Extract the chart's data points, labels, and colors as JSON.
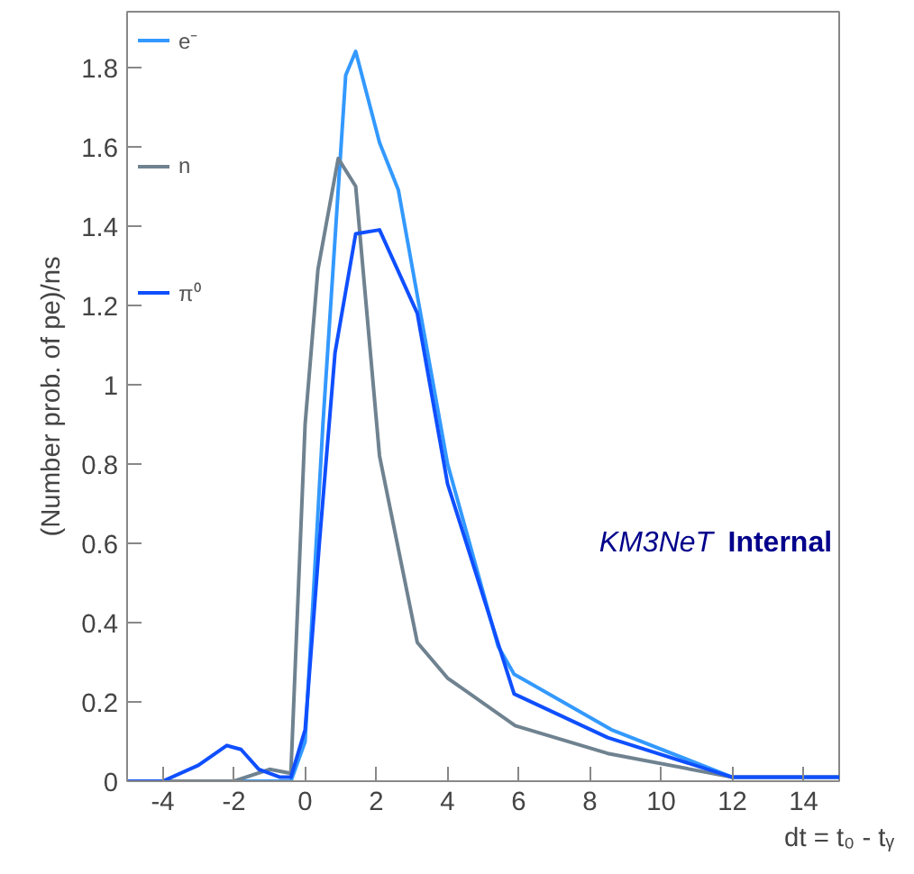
{
  "chart_data": {
    "type": "line",
    "xlabel": "dt = t₀ - tᵧ",
    "ylabel": "(Number prob. of pe)/ns",
    "xlim": [
      -5,
      15
    ],
    "ylim": [
      0,
      1.94
    ],
    "xticks": [
      -4,
      -2,
      0,
      2,
      4,
      6,
      8,
      10,
      12,
      14
    ],
    "yticks": [
      0,
      0.2,
      0.4,
      0.6,
      0.8,
      1,
      1.2,
      1.4,
      1.6,
      1.8
    ],
    "grid": false,
    "legend": "top left",
    "marker": "none",
    "line_style": "solid",
    "annotations": [
      "KM3NeT",
      "Internal"
    ],
    "series": [
      {
        "name": "e⁻",
        "color": "#3399ff",
        "x": [
          -5,
          -0.4,
          0,
          0.5,
          1.14,
          1.42,
          2.09,
          2.62,
          4,
          5.42,
          5.87,
          8.6,
          12,
          15
        ],
        "values": [
          0,
          0,
          0.1,
          0.9,
          1.78,
          1.84,
          1.61,
          1.49,
          0.8,
          0.34,
          0.27,
          0.13,
          0.01,
          0.01
        ]
      },
      {
        "name": "n",
        "color": "#6f8290",
        "x": [
          -5,
          -2,
          -1,
          -0.4,
          0,
          0.36,
          0.93,
          1.42,
          2.09,
          3.15,
          4,
          5.9,
          8.5,
          12,
          15
        ],
        "values": [
          0,
          0,
          0.03,
          0.02,
          0.9,
          1.29,
          1.57,
          1.5,
          0.82,
          0.35,
          0.26,
          0.14,
          0.07,
          0.01,
          0.01
        ]
      },
      {
        "name": "π⁰",
        "color": "#0f4fff",
        "x": [
          -5,
          -4,
          -3,
          -2.2,
          -1.8,
          -1.3,
          -0.7,
          -0.4,
          0,
          0.4,
          0.84,
          1.42,
          2.09,
          3.15,
          4,
          5.87,
          8.5,
          12,
          15
        ],
        "values": [
          0,
          0,
          0.04,
          0.09,
          0.08,
          0.03,
          0.01,
          0.01,
          0.13,
          0.6,
          1.08,
          1.38,
          1.39,
          1.18,
          0.75,
          0.22,
          0.11,
          0.01,
          0.01
        ]
      }
    ]
  }
}
